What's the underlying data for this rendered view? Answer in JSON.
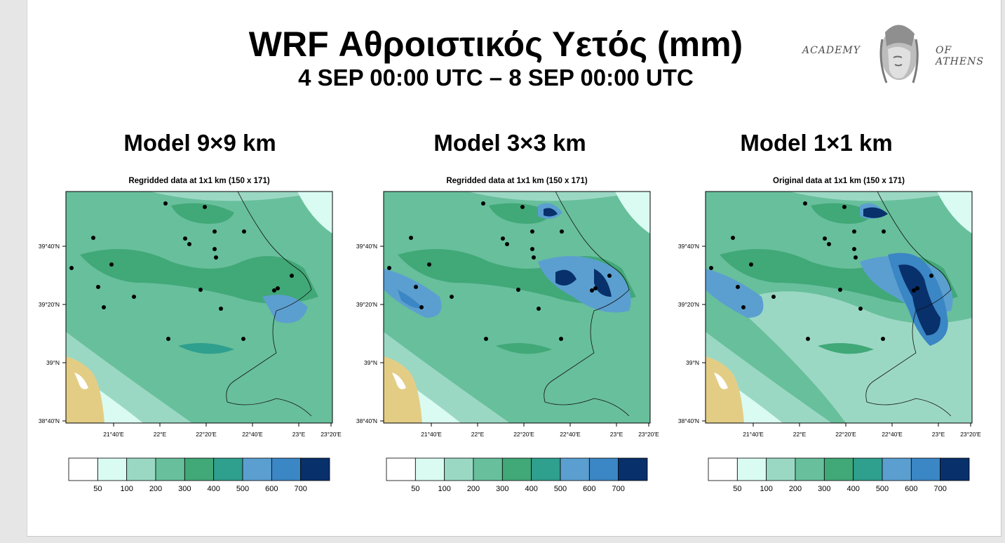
{
  "header": {
    "title": "WRF Αθροιστικός Υετός (mm)",
    "subtitle": "4 SEP 00:00 UTC – 8 SEP 00:00 UTC"
  },
  "logo": {
    "left_text": "ACADEMY",
    "right_text": "OF ATHENS"
  },
  "models": [
    {
      "title": "Model 9×9 km",
      "map_title": "Regridded data at 1x1 km (150 x 171)",
      "intensity": 1
    },
    {
      "title": "Model 3×3 km",
      "map_title": "Regridded data at 1x1 km (150 x 171)",
      "intensity": 2
    },
    {
      "title": "Model 1×1 km",
      "map_title": "Original data at 1x1 km (150 x 171)",
      "intensity": 3
    }
  ],
  "axes": {
    "lat_labels": [
      "39°40'N",
      "39°20'N",
      "39°N",
      "38°40'N"
    ],
    "lon_labels": [
      "21°40'E",
      "22°E",
      "22°20'E",
      "22°40'E",
      "23°E",
      "23°20'E"
    ]
  },
  "colorbar": {
    "labels": [
      "50",
      "100",
      "200",
      "300",
      "400",
      "500",
      "600",
      "700"
    ],
    "colors": [
      "#ffffff",
      "#d9fbf2",
      "#9bd8c4",
      "#68bf9c",
      "#41a878",
      "#2f9f8e",
      "#5b9fd0",
      "#3b86c4",
      "#08306b"
    ]
  },
  "map_colors": {
    "land": "#e3cd85",
    "sea": "#d9fbf2",
    "l50": "#ffffff",
    "l100": "#d9fbf2",
    "l200": "#9bd8c4",
    "l300": "#68bf9c",
    "l400": "#41a878",
    "l500": "#2f9f8e",
    "l600": "#5b9fd0",
    "l650": "#3b86c4",
    "l700": "#08306b"
  }
}
